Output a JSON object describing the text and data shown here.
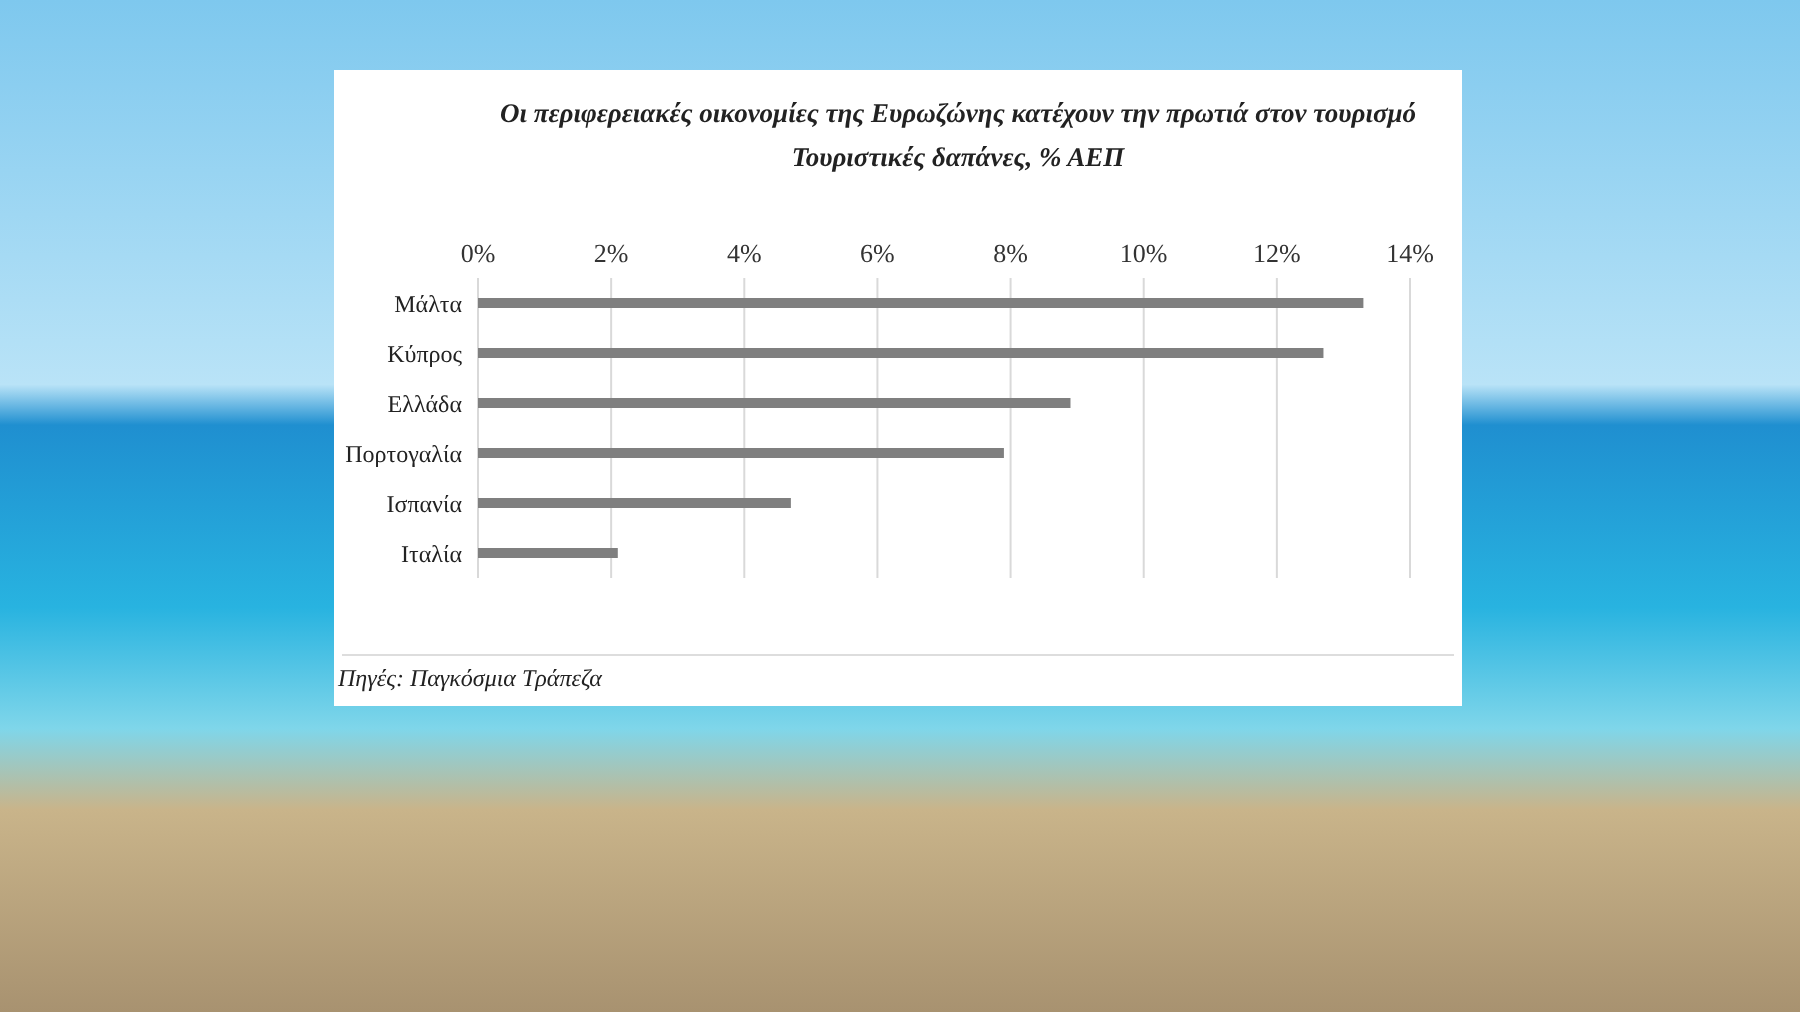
{
  "chart_data": {
    "type": "bar",
    "orientation": "horizontal",
    "title": "Οι περιφερειακές οικονομίες της Ευρωζώνης κατέχουν την πρωτιά στον τουρισμό",
    "subtitle": "Τουριστικές δαπάνες, % ΑΕΠ",
    "categories": [
      "Μάλτα",
      "Κύπρος",
      "Ελλάδα",
      "Πορτογαλία",
      "Ισπανία",
      "Ιταλία"
    ],
    "values": [
      13.3,
      12.7,
      8.9,
      7.9,
      4.7,
      2.1
    ],
    "color": "#7f7f7f",
    "xlim": [
      0,
      14
    ],
    "xticks": [
      {
        "value": 0,
        "label": "0%"
      },
      {
        "value": 2,
        "label": "2%"
      },
      {
        "value": 4,
        "label": "4%"
      },
      {
        "value": 6,
        "label": "6%"
      },
      {
        "value": 8,
        "label": "8%"
      },
      {
        "value": 10,
        "label": "10%"
      },
      {
        "value": 12,
        "label": "12%"
      },
      {
        "value": 14,
        "label": "14%"
      }
    ],
    "grid": "x",
    "legend": false,
    "annotations": [
      "Πηγές: Παγκόσμια Τράπεζα"
    ]
  }
}
